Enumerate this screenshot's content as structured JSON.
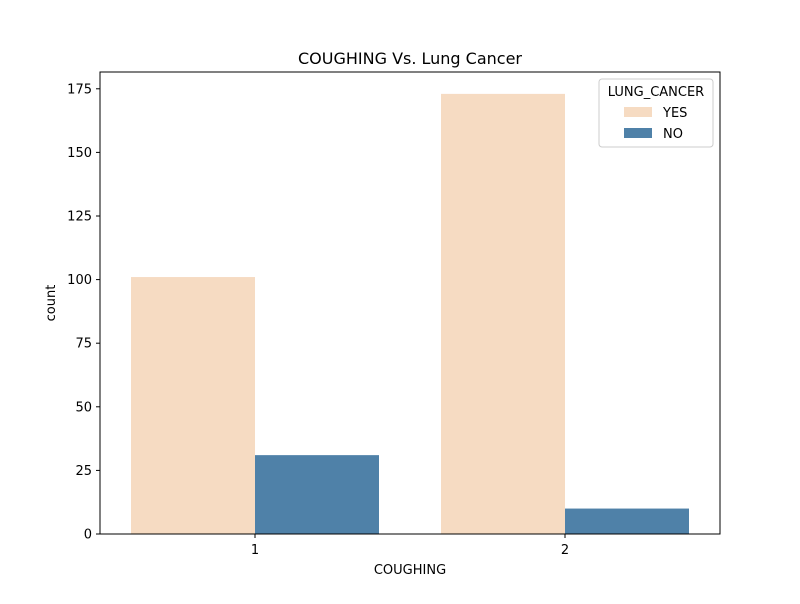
{
  "chart_data": {
    "type": "bar",
    "title": "COUGHING Vs. Lung Cancer",
    "xlabel": "COUGHING",
    "ylabel": "count",
    "categories": [
      "1",
      "2"
    ],
    "series": [
      {
        "name": "YES",
        "values": [
          101,
          173
        ],
        "color": "#f6dbc2"
      },
      {
        "name": "NO",
        "values": [
          31,
          10
        ],
        "color": "#4f81a8"
      }
    ],
    "ylim": [
      0,
      181.6
    ],
    "yticks": [
      0,
      25,
      50,
      75,
      100,
      125,
      150,
      175
    ],
    "legend": {
      "title": "LUNG_CANCER",
      "placement": "top-right"
    },
    "grid": false
  }
}
